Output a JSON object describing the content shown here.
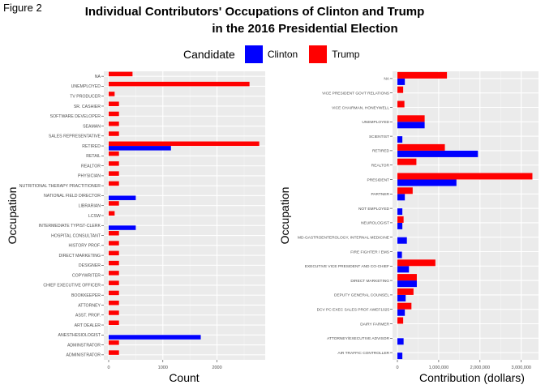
{
  "figure_label": "Figure 2",
  "title_line1": "Individual Contributors' Occupations of Clinton and Trump",
  "title_line2": "in the 2016 Presidential Election",
  "legend": {
    "title": "Candidate",
    "items": [
      {
        "name": "Clinton",
        "color": "#0000ff"
      },
      {
        "name": "Trump",
        "color": "#ff0000"
      }
    ]
  },
  "colors": {
    "panel_bg": "#ebebeb",
    "grid": "#ffffff",
    "clinton": "#0000ff",
    "trump": "#ff0000"
  },
  "chart_data": [
    {
      "type": "bar",
      "orientation": "horizontal",
      "xlabel": "Count",
      "ylabel": "Occupation",
      "xlim": [
        0,
        2800
      ],
      "xticks": [
        0,
        1000,
        2000
      ],
      "xtick_labels": [
        "0",
        "1000",
        "2000"
      ],
      "grid": true,
      "categories": [
        "NA",
        "UNEMPLOYED",
        "TV PRODUCER",
        "SR. CASHIER",
        "SOFTWARE DEVELOPER",
        "SEAMAN",
        "SALES REPRESENTATIVE",
        "RETIRED",
        "RETAIL",
        "REALTOR",
        "PHYSICIAN",
        "NUTRITIONAL THERAPY PRACTITIONER",
        "NATIONAL FIELD DIRECTOR",
        "LIBRARIAN",
        "LCSW",
        "INTERMEDIATE TYPIST-CLERK",
        "HOSPITAL CONSULTANT",
        "HISTORY PROF.",
        "DIRECT MARKETING",
        "DESIGNER",
        "COPYWRITER",
        "CHIEF EXECUTIVE OFFICER",
        "BOOKKEEPER",
        "ATTORNEY",
        "ASST. PROF.",
        "ART DEALER",
        "ANESTHESIOLOGIST",
        "ADMINSTRATOR",
        "ADMINISTRATOR"
      ],
      "series": [
        {
          "name": "Clinton",
          "color": "#0000ff",
          "values": [
            0,
            0,
            0,
            0,
            0,
            0,
            0,
            1150,
            0,
            0,
            0,
            0,
            500,
            0,
            0,
            500,
            0,
            0,
            0,
            0,
            0,
            0,
            0,
            0,
            0,
            0,
            1700,
            0,
            0
          ]
        },
        {
          "name": "Trump",
          "color": "#ff0000",
          "values": [
            440,
            2600,
            110,
            190,
            190,
            190,
            190,
            2780,
            190,
            190,
            190,
            190,
            0,
            190,
            110,
            0,
            190,
            190,
            190,
            190,
            190,
            190,
            190,
            190,
            190,
            190,
            0,
            190,
            190
          ]
        }
      ]
    },
    {
      "type": "bar",
      "orientation": "horizontal",
      "xlabel": "Contribution (dollars)",
      "ylabel": "Occupation",
      "xlim": [
        0,
        3300000
      ],
      "xticks": [
        0,
        1000000,
        2000000,
        3000000
      ],
      "xtick_labels": [
        "0",
        "1,000,000",
        "2,000,000",
        "3,000,000"
      ],
      "grid": true,
      "categories": [
        "NA",
        "VICE PRESIDENT GOVT RELATIONS",
        "VICE CHAIRMAN, HONEYWELL",
        "UNEMPLOYED",
        "SCIENTIST",
        "RETIRED",
        "REALTOR",
        "PRESIDENT",
        "PARTNER",
        "NOT EMPLOYED",
        "NEUROLOGIST",
        "MD-GASTROENTEROLOGY, INTERNAL MEDICINE",
        "FIRE FIGHTER / EMS",
        "EXECUTIVE VICE PRESIDENT AND CO-CHIEF",
        "DIRECT MARKETING",
        "DEPUTY GENERAL COUNSEL",
        "DCV PC EXEC SALES PROF AWEF1025",
        "DAIRY FARMER",
        "ATTORNEY/EXECUTIVE ADVISOR",
        "AIR TRAFFIC CONTROLLER"
      ],
      "series": [
        {
          "name": "Clinton",
          "color": "#0000ff",
          "values": [
            180000,
            0,
            0,
            660000,
            120000,
            1950000,
            0,
            1430000,
            180000,
            120000,
            120000,
            230000,
            110000,
            280000,
            470000,
            200000,
            180000,
            0,
            150000,
            120000
          ]
        },
        {
          "name": "Trump",
          "color": "#ff0000",
          "values": [
            1200000,
            140000,
            170000,
            660000,
            0,
            1150000,
            460000,
            3270000,
            370000,
            0,
            150000,
            0,
            0,
            920000,
            470000,
            390000,
            340000,
            140000,
            0,
            0
          ]
        }
      ]
    }
  ]
}
